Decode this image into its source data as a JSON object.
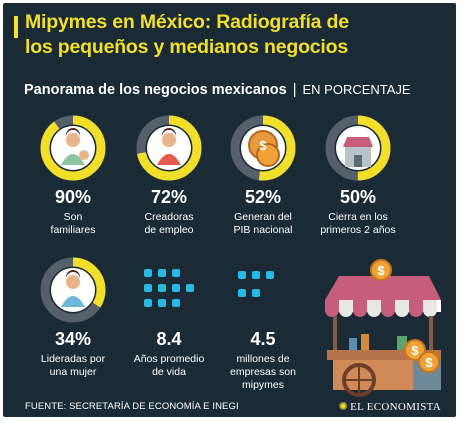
{
  "title_line1": "Mipymes en México: Radiografía de",
  "title_line2": "los pequeños y medianos negocios",
  "subtitle": "Panorama de los negocios mexicanos",
  "separator": "|",
  "unit": "EN PORCENTAJE",
  "colors": {
    "background": "#1b2b36",
    "accent": "#f2df2a",
    "ring_track": "#55606a",
    "dots": "#27b8e8"
  },
  "chart_data": {
    "type": "donut",
    "items": [
      {
        "value": 90,
        "display": "90%",
        "label": [
          "Son",
          "familiares"
        ],
        "icon": "family-icon"
      },
      {
        "value": 72,
        "display": "72%",
        "label": [
          "Creadoras",
          "de empleo"
        ],
        "icon": "worker-icon"
      },
      {
        "value": 52,
        "display": "52%",
        "label": [
          "Generan del",
          "PIB nacional"
        ],
        "icon": "coins-icon"
      },
      {
        "value": 50,
        "display": "50%",
        "label": [
          "Cierra en los",
          "primeros 2 años"
        ],
        "icon": "closed-store-icon"
      },
      {
        "value": 34,
        "display": "34%",
        "label": [
          "Lideradas por",
          "una mujer"
        ],
        "icon": "woman-icon"
      }
    ],
    "stats": [
      {
        "display": "8.4",
        "label": [
          "Años promedio",
          "de vida"
        ],
        "icon": "dots-icon"
      },
      {
        "display": "4.5",
        "label": [
          "millones de",
          "empresas son",
          "mipymes"
        ],
        "icon": "dots-icon"
      }
    ]
  },
  "footer": {
    "source": "FUENTE: SECRETARÍA DE ECONOMÍA E INEGI",
    "brand": "EL ECONOMISTA",
    "brand_icon": "compass-icon"
  },
  "illustration": "market-stall-icon"
}
